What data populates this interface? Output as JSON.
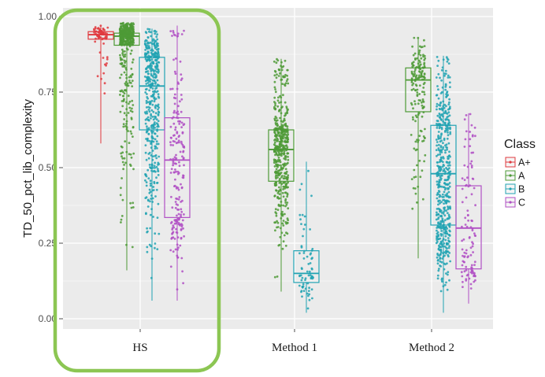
{
  "chart_data": {
    "type": "boxplot",
    "ylabel": "TD_50_pct_lib_complexity",
    "xlabel": "",
    "ylim": [
      0.0,
      1.0
    ],
    "yticks": [
      "0.00",
      "0.25",
      "0.50",
      "0.75",
      "1.00"
    ],
    "ytick_values": [
      0.0,
      0.25,
      0.5,
      0.75,
      1.0
    ],
    "categories": [
      "HS",
      "Method 1",
      "Method 2"
    ],
    "grid": true,
    "legend": {
      "title": "Class",
      "position": "right"
    },
    "highlight_category": "HS",
    "series": [
      {
        "name": "A+",
        "color": "#e0393e",
        "boxes": [
          {
            "category": "HS",
            "min": 0.58,
            "q1": 0.925,
            "median": 0.94,
            "q3": 0.95,
            "max": 0.97,
            "n": 70
          },
          null,
          null
        ]
      },
      {
        "name": "A",
        "color": "#4d9a36",
        "boxes": [
          {
            "category": "HS",
            "min": 0.16,
            "q1": 0.905,
            "median": 0.935,
            "q3": 0.945,
            "max": 0.98,
            "n": 560
          },
          {
            "category": "Method 1",
            "min": 0.09,
            "q1": 0.455,
            "median": 0.56,
            "q3": 0.625,
            "max": 0.86,
            "n": 460
          },
          {
            "category": "Method 2",
            "min": 0.2,
            "q1": 0.685,
            "median": 0.79,
            "q3": 0.83,
            "max": 0.93,
            "n": 170
          }
        ]
      },
      {
        "name": "B",
        "color": "#21a3b3",
        "boxes": [
          {
            "category": "HS",
            "min": 0.06,
            "q1": 0.625,
            "median": 0.77,
            "q3": 0.865,
            "max": 0.96,
            "n": 460
          },
          {
            "category": "Method 1",
            "min": 0.02,
            "q1": 0.12,
            "median": 0.15,
            "q3": 0.225,
            "max": 0.52,
            "n": 70
          },
          {
            "category": "Method 2",
            "min": 0.02,
            "q1": 0.31,
            "median": 0.48,
            "q3": 0.64,
            "max": 0.87,
            "n": 520
          }
        ]
      },
      {
        "name": "C",
        "color": "#b04fc4",
        "boxes": [
          {
            "category": "HS",
            "min": 0.06,
            "q1": 0.335,
            "median": 0.525,
            "q3": 0.665,
            "max": 0.97,
            "n": 200
          },
          null,
          {
            "category": "Method 2",
            "min": 0.05,
            "q1": 0.165,
            "median": 0.3,
            "q3": 0.44,
            "max": 0.68,
            "n": 110
          }
        ]
      }
    ]
  }
}
